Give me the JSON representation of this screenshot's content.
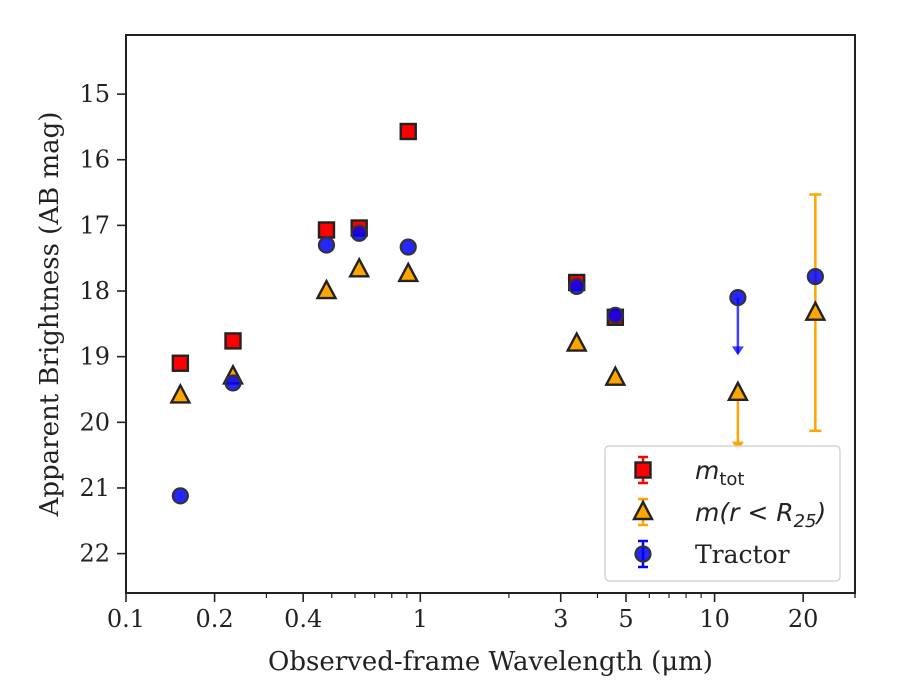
{
  "chart_data": {
    "type": "scatter",
    "xlabel": "Observed-frame Wavelength (μm)",
    "ylabel": "Apparent Brightness (AB mag)",
    "xscale": "log",
    "xlim": [
      0.1,
      30
    ],
    "ylim": [
      22.6,
      14.1
    ],
    "y_inverted": true,
    "x_major_ticks": [
      0.1,
      0.2,
      0.4,
      1,
      3,
      5,
      10,
      20
    ],
    "x_tick_labels": [
      "0.1",
      "0.2",
      "0.4",
      "1",
      "3",
      "5",
      "10",
      "20"
    ],
    "y_ticks": [
      15,
      16,
      17,
      18,
      19,
      20,
      21,
      22
    ],
    "y_tick_labels": [
      "15",
      "16",
      "17",
      "18",
      "19",
      "20",
      "21",
      "22"
    ],
    "grid": false,
    "legend_position": "lower-right",
    "series": [
      {
        "name": "m_tot",
        "legend_parts": [
          "m",
          "tot",
          ""
        ],
        "marker": "square",
        "color": "#ff0000",
        "edge_color": "#222222",
        "points": [
          {
            "x": 0.153,
            "y": 19.1
          },
          {
            "x": 0.231,
            "y": 18.76
          },
          {
            "x": 0.48,
            "y": 17.07
          },
          {
            "x": 0.62,
            "y": 17.04
          },
          {
            "x": 0.91,
            "y": 15.57
          },
          {
            "x": 3.4,
            "y": 17.87
          },
          {
            "x": 4.6,
            "y": 18.4
          }
        ]
      },
      {
        "name": "m(r < R25)",
        "legend_parts": [
          "m(r < R",
          "25",
          ")"
        ],
        "marker": "triangle",
        "color": "#ffa500",
        "edge_color": "#222222",
        "points": [
          {
            "x": 0.153,
            "y": 19.59
          },
          {
            "x": 0.231,
            "y": 19.3
          },
          {
            "x": 0.48,
            "y": 18.0
          },
          {
            "x": 0.62,
            "y": 17.67
          },
          {
            "x": 0.91,
            "y": 17.74
          },
          {
            "x": 3.4,
            "y": 18.8
          },
          {
            "x": 4.6,
            "y": 19.32
          },
          {
            "x": 12.0,
            "y": 19.55,
            "upper_limit": true,
            "limit_to": 20.4
          },
          {
            "x": 22.0,
            "y": 18.33,
            "yerr": [
              1.8,
              1.8
            ]
          }
        ]
      },
      {
        "name": "Tractor",
        "legend_parts": [
          "Tractor",
          "",
          ""
        ],
        "marker": "circle",
        "color": "#0000ff",
        "edge_color": "#333333",
        "points": [
          {
            "x": 0.153,
            "y": 21.12
          },
          {
            "x": 0.231,
            "y": 19.4
          },
          {
            "x": 0.48,
            "y": 17.3
          },
          {
            "x": 0.62,
            "y": 17.12
          },
          {
            "x": 0.91,
            "y": 17.33
          },
          {
            "x": 3.4,
            "y": 17.93
          },
          {
            "x": 4.6,
            "y": 18.37
          },
          {
            "x": 12.0,
            "y": 18.1,
            "upper_limit": true,
            "limit_to": 18.95
          },
          {
            "x": 22.0,
            "y": 17.78
          }
        ]
      }
    ]
  }
}
